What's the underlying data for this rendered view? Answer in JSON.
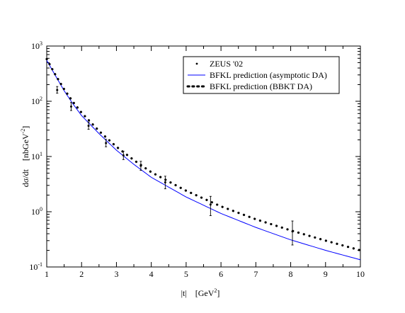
{
  "chart_data": {
    "type": "line",
    "xlabel": "|t|    [GeV",
    "xlabel_sup": "2",
    "xlabel_end": "]",
    "ylabel": "dσ/dt    [nbGeV",
    "ylabel_sup": "-2",
    "ylabel_end": "]",
    "xlim": [
      1,
      10
    ],
    "ylim": [
      0.1,
      1000
    ],
    "yscale": "log",
    "grid": false,
    "legend_position": "top-right",
    "x_ticks": [
      "1",
      "2",
      "3",
      "4",
      "5",
      "6",
      "7",
      "8",
      "9",
      "10"
    ],
    "y_ticks": [
      {
        "base": "10",
        "exp": "-1",
        "value": 0.1
      },
      {
        "base": "10",
        "exp": "0",
        "value": 1
      },
      {
        "base": "10",
        "exp": "1",
        "value": 10
      },
      {
        "base": "10",
        "exp": "2",
        "value": 100
      },
      {
        "base": "10",
        "exp": "3",
        "value": 1000
      }
    ],
    "series": [
      {
        "name": "ZEUS  '02",
        "kind": "errorbar",
        "color": "#000000",
        "points": [
          {
            "x": 1.3,
            "y": 160,
            "ylo": 140,
            "yhi": 185
          },
          {
            "x": 1.7,
            "y": 80,
            "ylo": 68,
            "yhi": 95
          },
          {
            "x": 2.2,
            "y": 36,
            "ylo": 31,
            "yhi": 42
          },
          {
            "x": 2.7,
            "y": 17.5,
            "ylo": 15,
            "yhi": 20.5
          },
          {
            "x": 3.2,
            "y": 10.5,
            "ylo": 8.8,
            "yhi": 12.5
          },
          {
            "x": 3.7,
            "y": 6.8,
            "ylo": 5.6,
            "yhi": 8.2
          },
          {
            "x": 4.4,
            "y": 3.4,
            "ylo": 2.6,
            "yhi": 4.4
          },
          {
            "x": 5.7,
            "y": 1.35,
            "ylo": 0.85,
            "yhi": 1.9
          },
          {
            "x": 8.05,
            "y": 0.44,
            "ylo": 0.25,
            "yhi": 0.68
          }
        ]
      },
      {
        "name": "BFKL prediction (asymptotic DA)",
        "kind": "line",
        "color": "#0000ff",
        "x": [
          1.0,
          1.25,
          1.5,
          1.75,
          2.0,
          2.5,
          3.0,
          3.5,
          4.0,
          5.0,
          6.0,
          7.0,
          8.0,
          9.0,
          10.0
        ],
        "y": [
          550,
          290,
          155,
          90,
          55,
          26,
          13,
          7.2,
          4.2,
          1.85,
          0.93,
          0.52,
          0.31,
          0.2,
          0.135
        ]
      },
      {
        "name": "BFKL prediction (BBKT DA)",
        "kind": "dotted",
        "color": "#000000",
        "x": [
          1.0,
          1.25,
          1.5,
          1.75,
          2.0,
          2.5,
          3.0,
          3.5,
          4.0,
          5.0,
          6.0,
          7.0,
          8.0,
          9.0,
          10.0
        ],
        "y": [
          580,
          300,
          165,
          98,
          62,
          29,
          15,
          8.6,
          5.2,
          2.4,
          1.25,
          0.73,
          0.46,
          0.3,
          0.2
        ]
      }
    ]
  }
}
